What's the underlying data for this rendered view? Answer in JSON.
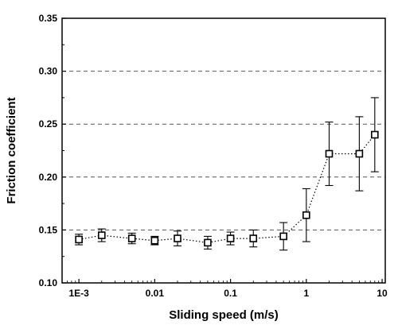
{
  "chart_data": {
    "type": "scatter",
    "title": "",
    "xlabel": "Sliding speed (m/s)",
    "ylabel": "Friction coefficient",
    "xscale": "log",
    "xlim": [
      0.0006,
      11
    ],
    "ylim": [
      0.1,
      0.35
    ],
    "xticks": [
      {
        "value": 0.001,
        "label": "1E-3"
      },
      {
        "value": 0.01,
        "label": "0.01"
      },
      {
        "value": 0.1,
        "label": "0.1"
      },
      {
        "value": 1,
        "label": "1"
      },
      {
        "value": 10,
        "label": "10"
      }
    ],
    "yticks": [
      {
        "value": 0.1,
        "label": "0.10"
      },
      {
        "value": 0.15,
        "label": "0.15"
      },
      {
        "value": 0.2,
        "label": "0.20"
      },
      {
        "value": 0.25,
        "label": "0.25"
      },
      {
        "value": 0.3,
        "label": "0.30"
      },
      {
        "value": 0.35,
        "label": "0.35"
      }
    ],
    "gridlines_y": [
      0.15,
      0.2,
      0.25,
      0.3
    ],
    "marker": "open-square",
    "line_style": "dotted",
    "series": [
      {
        "points": [
          {
            "x": 0.001,
            "y": 0.141,
            "err": 0.005
          },
          {
            "x": 0.002,
            "y": 0.145,
            "err": 0.006
          },
          {
            "x": 0.005,
            "y": 0.142,
            "err": 0.005
          },
          {
            "x": 0.01,
            "y": 0.14,
            "err": 0.004
          },
          {
            "x": 0.02,
            "y": 0.142,
            "err": 0.007
          },
          {
            "x": 0.05,
            "y": 0.138,
            "err": 0.006
          },
          {
            "x": 0.1,
            "y": 0.142,
            "err": 0.006
          },
          {
            "x": 0.2,
            "y": 0.142,
            "err": 0.008
          },
          {
            "x": 0.5,
            "y": 0.144,
            "err": 0.013
          },
          {
            "x": 1,
            "y": 0.164,
            "err": 0.025
          },
          {
            "x": 2,
            "y": 0.222,
            "err": 0.03
          },
          {
            "x": 5,
            "y": 0.222,
            "err": 0.035
          },
          {
            "x": 8,
            "y": 0.24,
            "err": 0.035
          }
        ]
      }
    ]
  },
  "colors": {
    "axis": "#000000",
    "grid": "#555555",
    "marker_fill": "#ffffff",
    "marker_stroke": "#000000"
  }
}
